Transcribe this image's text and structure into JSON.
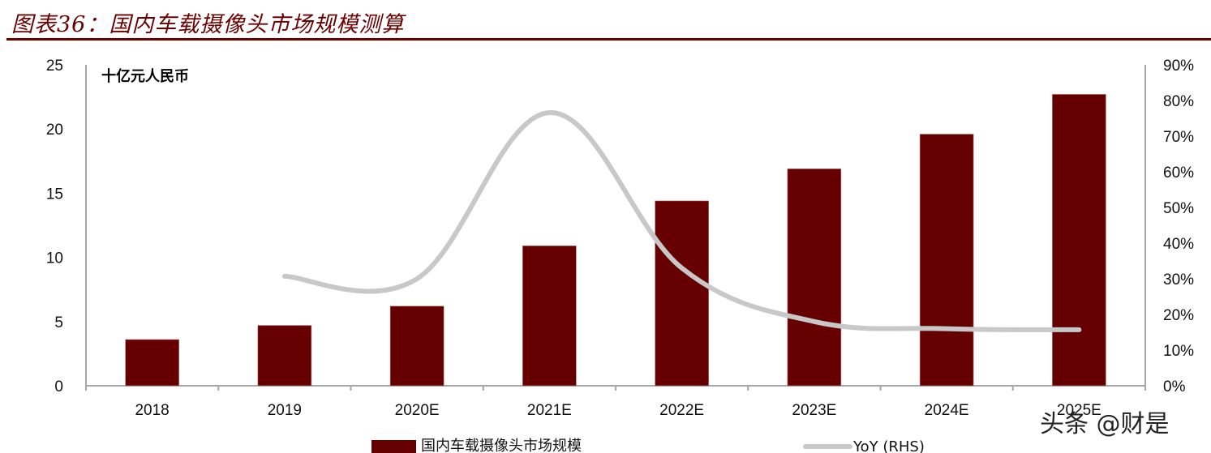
{
  "header": {
    "title": "图表36：国内车载摄像头市场规模测算"
  },
  "watermark": "头条 @财是",
  "colors": {
    "bar": "#660000",
    "line": "#c8c8c8",
    "title": "#6b0000",
    "axis": "#999999"
  },
  "chart_data": {
    "type": "bar",
    "title": "图表36：国内车载摄像头市场规模测算",
    "unit_label": "十亿元人民币",
    "categories": [
      "2018",
      "2019",
      "2020E",
      "2021E",
      "2022E",
      "2023E",
      "2024E",
      "2025E"
    ],
    "series": [
      {
        "name": "国内车载摄像头市场规模",
        "type": "bar",
        "axis": "left",
        "values": [
          3.6,
          4.7,
          6.2,
          10.9,
          14.4,
          16.9,
          19.6,
          22.7
        ]
      },
      {
        "name": "YoY (RHS)",
        "type": "line",
        "axis": "right",
        "values": [
          null,
          30.7,
          30.0,
          76.6,
          33.0,
          18.0,
          16.0,
          15.7
        ]
      }
    ],
    "left_axis": {
      "ylim": [
        0,
        25
      ],
      "ticks": [
        "0",
        "5",
        "10",
        "15",
        "20",
        "25"
      ]
    },
    "right_axis": {
      "ylim": [
        0,
        90
      ],
      "ticks": [
        "0%",
        "10%",
        "20%",
        "30%",
        "40%",
        "50%",
        "60%",
        "70%",
        "80%",
        "90%"
      ]
    },
    "xlabel": "",
    "ylabel": "十亿元人民币",
    "grid": false,
    "legend_position": "bottom"
  }
}
